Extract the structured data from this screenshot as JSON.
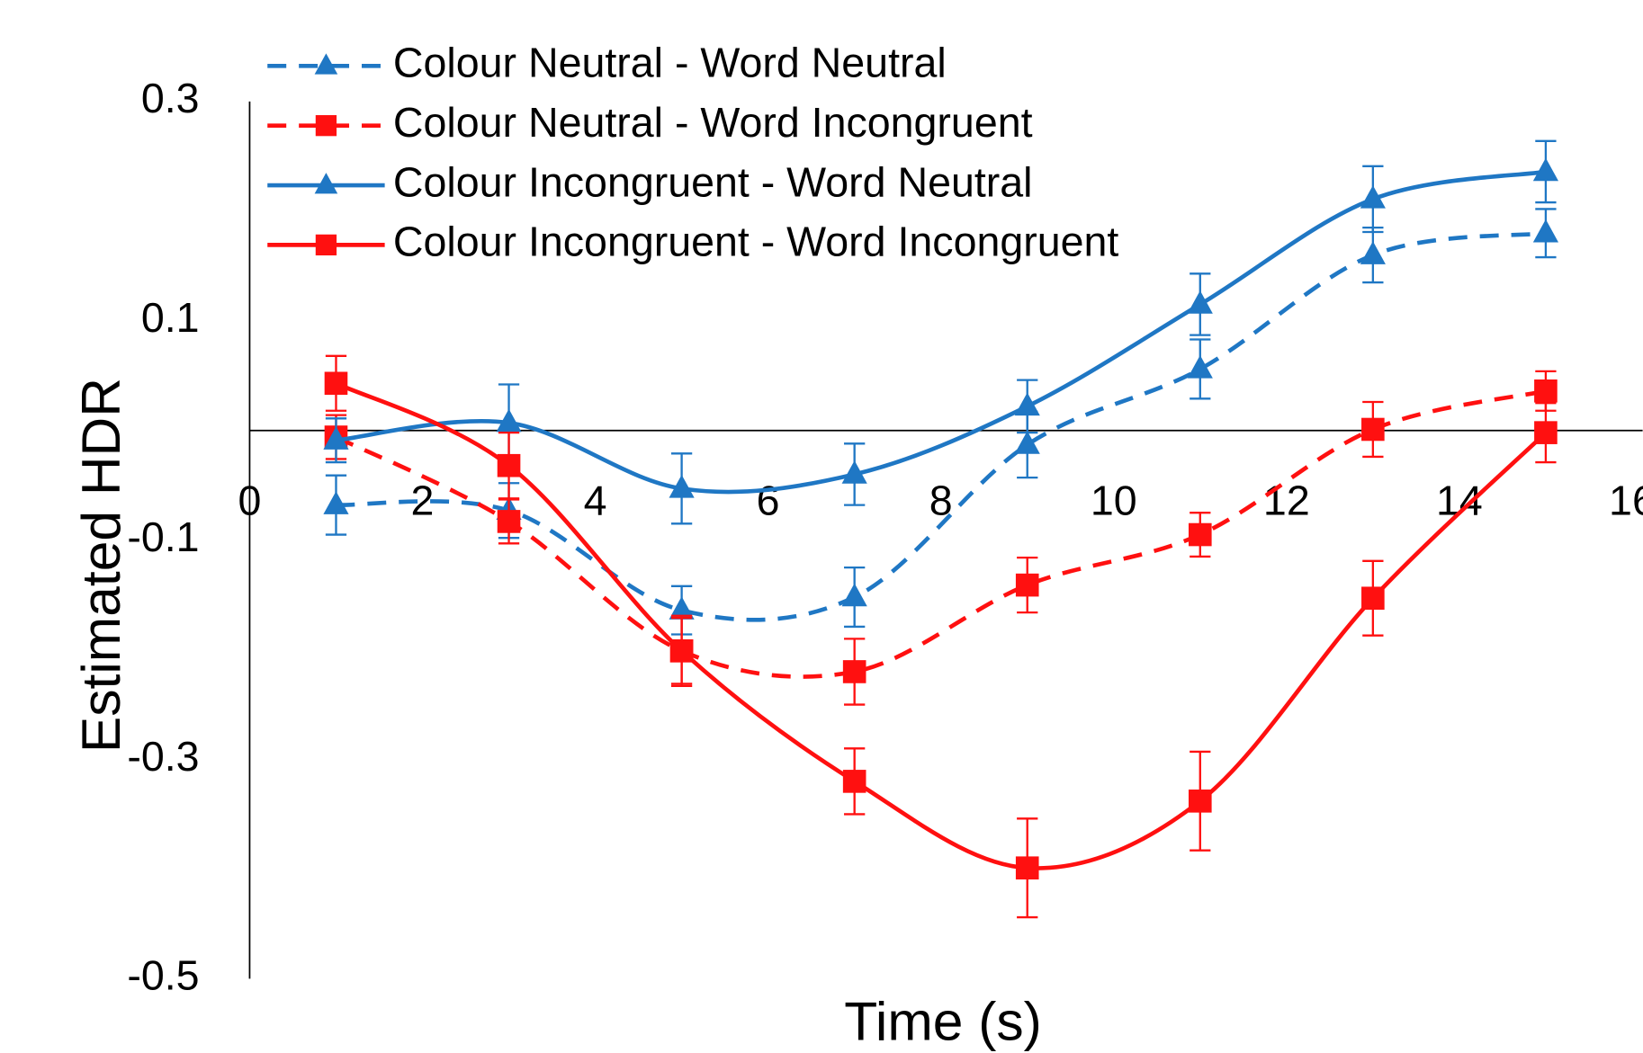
{
  "chart_data": {
    "type": "line",
    "xlabel": "Time (s)",
    "ylabel": "Estimated HDR",
    "xlim": [
      0,
      16
    ],
    "xticks": [
      0,
      2,
      4,
      6,
      8,
      10,
      12,
      14,
      16
    ],
    "ylim": [
      -0.5,
      0.3
    ],
    "yticks": [
      -0.5,
      -0.3,
      -0.1,
      0.1,
      0.3
    ],
    "grid": false,
    "legend": "top-left",
    "smooth": true,
    "x": [
      1,
      3,
      5,
      7,
      9,
      11,
      13,
      15
    ],
    "series": [
      {
        "name": "Colour Neutral - Word Neutral",
        "color": "#1f77c4",
        "dash": true,
        "marker": "triangle",
        "values": [
          -0.068,
          -0.073,
          -0.164,
          -0.152,
          -0.013,
          0.056,
          0.16,
          0.18
        ],
        "errors": [
          0.027,
          0.025,
          0.022,
          0.027,
          0.03,
          0.027,
          0.025,
          0.022
        ]
      },
      {
        "name": "Colour Neutral - Word Incongruent",
        "color": "#ff1010",
        "dash": true,
        "marker": "square",
        "values": [
          -0.006,
          -0.083,
          -0.201,
          -0.22,
          -0.141,
          -0.095,
          0.001,
          0.036
        ],
        "errors": [
          0.02,
          0.02,
          0.03,
          0.03,
          0.025,
          0.02,
          0.025,
          0.018
        ]
      },
      {
        "name": "Colour Incongruent - Word Neutral",
        "color": "#1f77c4",
        "dash": false,
        "marker": "triangle",
        "values": [
          -0.009,
          0.007,
          -0.053,
          -0.04,
          0.022,
          0.115,
          0.211,
          0.236
        ],
        "errors": [
          0.02,
          0.035,
          0.032,
          0.028,
          0.024,
          0.028,
          0.03,
          0.028
        ]
      },
      {
        "name": "Colour Incongruent - Word Incongruent",
        "color": "#ff1010",
        "dash": false,
        "marker": "square",
        "values": [
          0.043,
          -0.032,
          -0.201,
          -0.32,
          -0.399,
          -0.338,
          -0.153,
          -0.002
        ],
        "errors": [
          0.025,
          0.03,
          0.032,
          0.03,
          0.045,
          0.045,
          0.034,
          0.027
        ]
      }
    ]
  }
}
